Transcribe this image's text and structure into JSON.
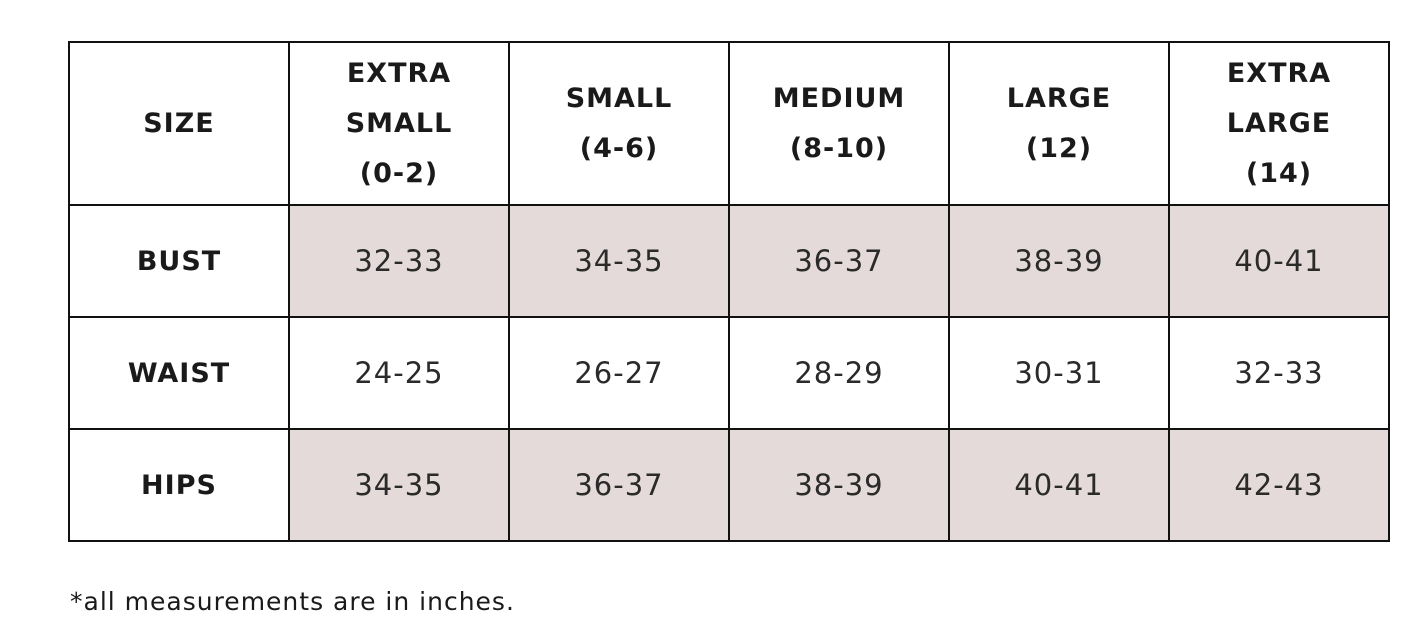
{
  "table": {
    "header": {
      "label": "SIZE",
      "columns": [
        {
          "name": "EXTRA SMALL",
          "range": "(0-2)"
        },
        {
          "name": "SMALL",
          "range": "(4-6)"
        },
        {
          "name": "MEDIUM",
          "range": "(8-10)"
        },
        {
          "name": "LARGE",
          "range": "(12)"
        },
        {
          "name": "EXTRA LARGE",
          "range": "(14)"
        }
      ]
    },
    "rows": [
      {
        "label": "BUST",
        "values": [
          "32-33",
          "34-35",
          "36-37",
          "38-39",
          "40-41"
        ]
      },
      {
        "label": "WAIST",
        "values": [
          "24-25",
          "26-27",
          "28-29",
          "30-31",
          "32-33"
        ]
      },
      {
        "label": "HIPS",
        "values": [
          "34-35",
          "36-37",
          "38-39",
          "40-41",
          "42-43"
        ]
      }
    ]
  },
  "footnote": "*all measurements are in inches.",
  "colors": {
    "shaded_row": "#e4dad9",
    "border": "#111111",
    "text": "#1a1a1a"
  }
}
